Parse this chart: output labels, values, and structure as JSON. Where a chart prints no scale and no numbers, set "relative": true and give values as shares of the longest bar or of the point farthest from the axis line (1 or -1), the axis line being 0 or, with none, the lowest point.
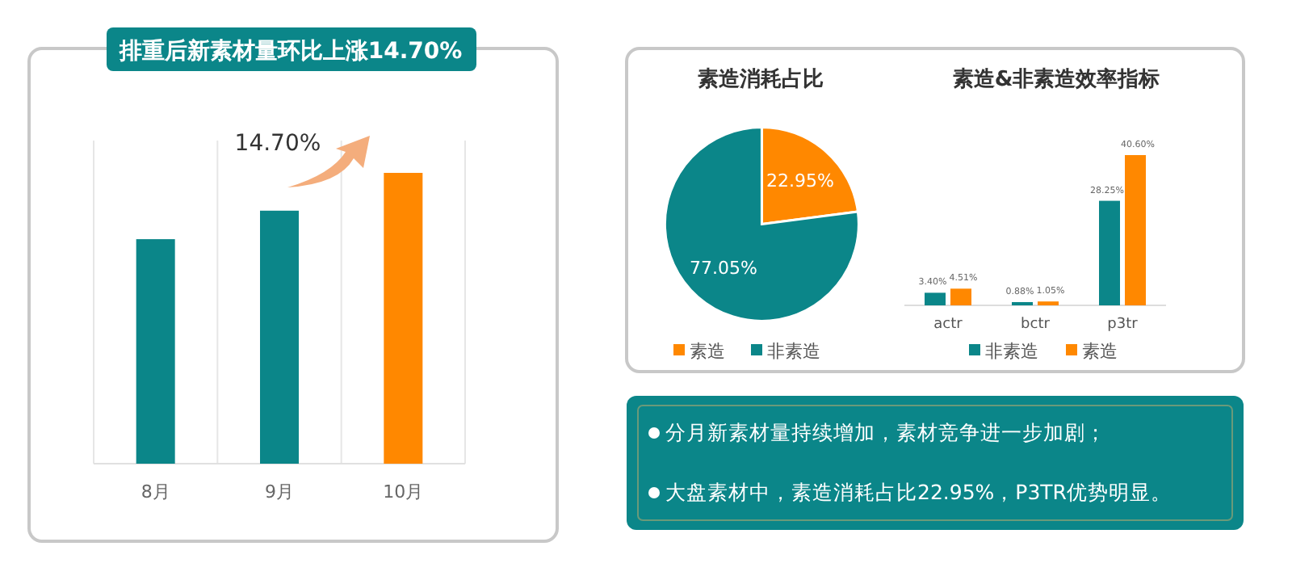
{
  "chart_data": [
    {
      "type": "bar",
      "title": "排重后新素材量环比上涨14.70%",
      "categories": [
        "8月",
        "9月",
        "10月"
      ],
      "values": [
        0.772,
        0.87,
        1
      ],
      "colors": [
        "#0b8689",
        "#0b8689",
        "#ff8800"
      ],
      "relative": true,
      "grid": "x",
      "annotations": [
        "14.70%"
      ]
    },
    {
      "type": "pie",
      "title": "素造消耗占比",
      "categories": [
        "素造",
        "非素造"
      ],
      "values": [
        22.95,
        77.05
      ],
      "colors": [
        "#ff8800",
        "#0b8689"
      ],
      "value_labels": [
        "22.95%",
        "77.05%"
      ],
      "legend": "bottom"
    },
    {
      "type": "bar",
      "title": "素造&非素造效率指标",
      "categories": [
        "actr",
        "bctr",
        "p3tr"
      ],
      "legend": "bottom",
      "series": [
        {
          "name": "非素造",
          "color": "#0b8689",
          "values": [
            3.4,
            0.88,
            28.25
          ],
          "value_labels": [
            "3.40%",
            "0.88%",
            "28.25%"
          ]
        },
        {
          "name": "素造",
          "color": "#ff8800",
          "values": [
            4.51,
            1.05,
            40.6
          ],
          "value_labels": [
            "4.51%",
            "1.05%",
            "40.60%"
          ]
        }
      ]
    },
    {
      "type": "other",
      "annotations": [
        "分月新素材量持续增加，素材竞争进一步加剧；",
        "大盘素材中，素造消耗占比22.95%，P3TR优势明显。"
      ]
    }
  ]
}
